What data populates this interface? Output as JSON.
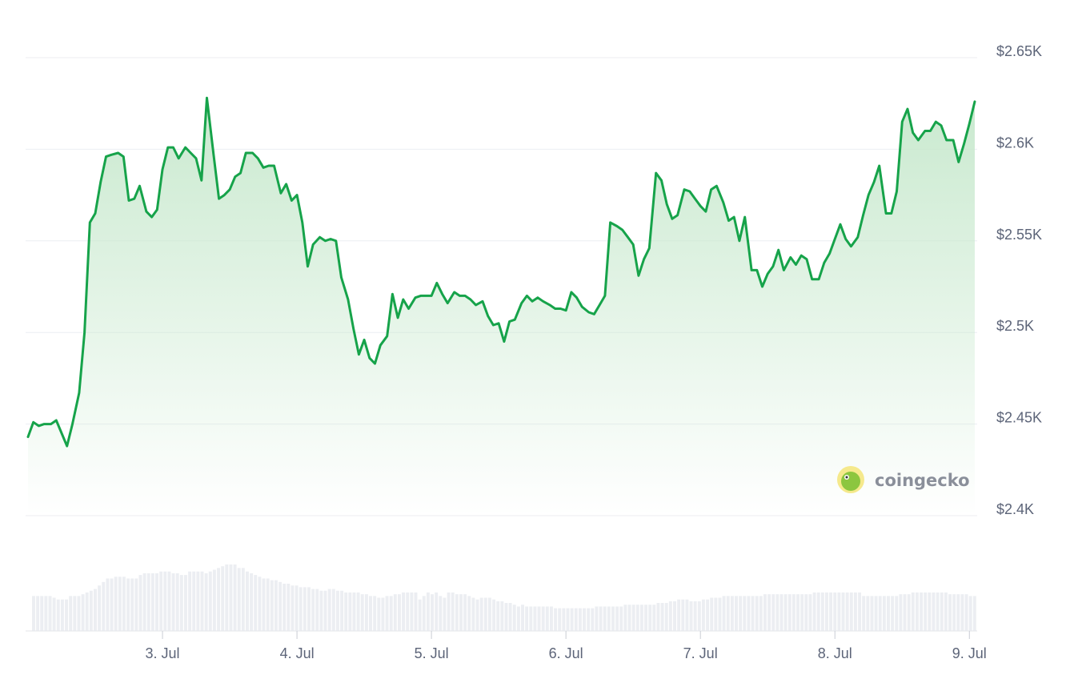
{
  "chart_data": {
    "type": "area",
    "title": "",
    "xlabel": "",
    "ylabel": "",
    "ylim": [
      2400,
      2650
    ],
    "grid": true,
    "y_ticks": [
      {
        "value": 2650,
        "label": "$2.65K"
      },
      {
        "value": 2600,
        "label": "$2.6K"
      },
      {
        "value": 2550,
        "label": "$2.55K"
      },
      {
        "value": 2500,
        "label": "$2.5K"
      },
      {
        "value": 2450,
        "label": "$2.45K"
      },
      {
        "value": 2400,
        "label": "$2.4K"
      }
    ],
    "x_ticks": [
      {
        "value": 1,
        "label": "3. Jul"
      },
      {
        "value": 2,
        "label": "4. Jul"
      },
      {
        "value": 3,
        "label": "5. Jul"
      },
      {
        "value": 4,
        "label": "6. Jul"
      },
      {
        "value": 5,
        "label": "7. Jul"
      },
      {
        "value": 6,
        "label": "8. Jul"
      },
      {
        "value": 7,
        "label": "9. Jul"
      }
    ],
    "series": [
      {
        "values": [
          [
            0.0,
            2443
          ],
          [
            0.04,
            2451
          ],
          [
            0.08,
            2449
          ],
          [
            0.12,
            2450
          ],
          [
            0.17,
            2450
          ],
          [
            0.21,
            2452
          ],
          [
            0.25,
            2445
          ],
          [
            0.29,
            2438
          ],
          [
            0.33,
            2450
          ],
          [
            0.38,
            2467
          ],
          [
            0.42,
            2500
          ],
          [
            0.46,
            2560
          ],
          [
            0.5,
            2565
          ],
          [
            0.54,
            2582
          ],
          [
            0.58,
            2596
          ],
          [
            0.62,
            2597
          ],
          [
            0.67,
            2598
          ],
          [
            0.71,
            2596
          ],
          [
            0.75,
            2572
          ],
          [
            0.79,
            2573
          ],
          [
            0.83,
            2580
          ],
          [
            0.88,
            2566
          ],
          [
            0.92,
            2563
          ],
          [
            0.96,
            2567
          ],
          [
            1.0,
            2589
          ],
          [
            1.04,
            2601
          ],
          [
            1.08,
            2601
          ],
          [
            1.12,
            2595
          ],
          [
            1.17,
            2601
          ],
          [
            1.21,
            2598
          ],
          [
            1.25,
            2595
          ],
          [
            1.29,
            2583
          ],
          [
            1.33,
            2628
          ],
          [
            1.38,
            2597
          ],
          [
            1.42,
            2573
          ],
          [
            1.46,
            2575
          ],
          [
            1.5,
            2578
          ],
          [
            1.54,
            2585
          ],
          [
            1.58,
            2587
          ],
          [
            1.62,
            2598
          ],
          [
            1.67,
            2598
          ],
          [
            1.71,
            2595
          ],
          [
            1.75,
            2590
          ],
          [
            1.79,
            2591
          ],
          [
            1.83,
            2591
          ],
          [
            1.88,
            2576
          ],
          [
            1.92,
            2581
          ],
          [
            1.96,
            2572
          ],
          [
            2.0,
            2575
          ],
          [
            2.04,
            2560
          ],
          [
            2.08,
            2536
          ],
          [
            2.12,
            2548
          ],
          [
            2.17,
            2552
          ],
          [
            2.21,
            2550
          ],
          [
            2.25,
            2551
          ],
          [
            2.29,
            2550
          ],
          [
            2.33,
            2530
          ],
          [
            2.38,
            2518
          ],
          [
            2.42,
            2502
          ],
          [
            2.46,
            2488
          ],
          [
            2.5,
            2496
          ],
          [
            2.54,
            2486
          ],
          [
            2.58,
            2483
          ],
          [
            2.62,
            2493
          ],
          [
            2.67,
            2498
          ],
          [
            2.71,
            2521
          ],
          [
            2.75,
            2508
          ],
          [
            2.79,
            2518
          ],
          [
            2.83,
            2513
          ],
          [
            2.88,
            2519
          ],
          [
            2.92,
            2520
          ],
          [
            2.96,
            2520
          ],
          [
            3.0,
            2520
          ],
          [
            3.04,
            2527
          ],
          [
            3.08,
            2521
          ],
          [
            3.12,
            2516
          ],
          [
            3.17,
            2522
          ],
          [
            3.21,
            2520
          ],
          [
            3.25,
            2520
          ],
          [
            3.29,
            2518
          ],
          [
            3.33,
            2515
          ],
          [
            3.38,
            2517
          ],
          [
            3.42,
            2509
          ],
          [
            3.46,
            2504
          ],
          [
            3.5,
            2505
          ],
          [
            3.54,
            2495
          ],
          [
            3.58,
            2506
          ],
          [
            3.62,
            2507
          ],
          [
            3.67,
            2516
          ],
          [
            3.71,
            2520
          ],
          [
            3.75,
            2517
          ],
          [
            3.79,
            2519
          ],
          [
            3.83,
            2517
          ],
          [
            3.88,
            2515
          ],
          [
            3.92,
            2513
          ],
          [
            3.96,
            2513
          ],
          [
            4.0,
            2512
          ],
          [
            4.04,
            2522
          ],
          [
            4.08,
            2519
          ],
          [
            4.12,
            2514
          ],
          [
            4.17,
            2511
          ],
          [
            4.21,
            2510
          ],
          [
            4.25,
            2515
          ],
          [
            4.29,
            2520
          ],
          [
            4.33,
            2560
          ],
          [
            4.38,
            2558
          ],
          [
            4.42,
            2556
          ],
          [
            4.46,
            2552
          ],
          [
            4.5,
            2548
          ],
          [
            4.54,
            2531
          ],
          [
            4.58,
            2540
          ],
          [
            4.62,
            2546
          ],
          [
            4.67,
            2587
          ],
          [
            4.71,
            2583
          ],
          [
            4.75,
            2570
          ],
          [
            4.79,
            2562
          ],
          [
            4.83,
            2564
          ],
          [
            4.88,
            2578
          ],
          [
            4.92,
            2577
          ],
          [
            4.96,
            2573
          ],
          [
            5.0,
            2569
          ],
          [
            5.04,
            2566
          ],
          [
            5.08,
            2578
          ],
          [
            5.12,
            2580
          ],
          [
            5.17,
            2571
          ],
          [
            5.21,
            2561
          ],
          [
            5.25,
            2563
          ],
          [
            5.29,
            2550
          ],
          [
            5.33,
            2563
          ],
          [
            5.38,
            2534
          ],
          [
            5.42,
            2534
          ],
          [
            5.46,
            2525
          ],
          [
            5.5,
            2532
          ],
          [
            5.54,
            2536
          ],
          [
            5.58,
            2545
          ],
          [
            5.62,
            2534
          ],
          [
            5.67,
            2541
          ],
          [
            5.71,
            2537
          ],
          [
            5.75,
            2542
          ],
          [
            5.79,
            2540
          ],
          [
            5.83,
            2529
          ],
          [
            5.88,
            2529
          ],
          [
            5.92,
            2538
          ],
          [
            5.96,
            2543
          ],
          [
            6.0,
            2551
          ],
          [
            6.04,
            2559
          ],
          [
            6.08,
            2551
          ],
          [
            6.12,
            2547
          ],
          [
            6.17,
            2552
          ],
          [
            6.21,
            2564
          ],
          [
            6.25,
            2575
          ],
          [
            6.29,
            2582
          ],
          [
            6.33,
            2591
          ],
          [
            6.38,
            2565
          ],
          [
            6.42,
            2565
          ],
          [
            6.46,
            2577
          ],
          [
            6.5,
            2615
          ],
          [
            6.54,
            2622
          ],
          [
            6.58,
            2609
          ],
          [
            6.62,
            2605
          ],
          [
            6.67,
            2610
          ],
          [
            6.71,
            2610
          ],
          [
            6.75,
            2615
          ],
          [
            6.79,
            2613
          ],
          [
            6.83,
            2605
          ],
          [
            6.88,
            2605
          ],
          [
            6.92,
            2593
          ],
          [
            6.96,
            2603
          ],
          [
            7.0,
            2614
          ],
          [
            7.04,
            2626
          ]
        ]
      }
    ],
    "volume_values": [
      40,
      40,
      40,
      40,
      40,
      38,
      36,
      36,
      36,
      40,
      40,
      40,
      42,
      44,
      46,
      48,
      52,
      56,
      60,
      60,
      62,
      62,
      62,
      60,
      60,
      60,
      64,
      66,
      66,
      66,
      66,
      68,
      68,
      68,
      66,
      66,
      64,
      64,
      68,
      68,
      68,
      68,
      66,
      68,
      70,
      72,
      74,
      76,
      76,
      76,
      72,
      72,
      68,
      66,
      64,
      62,
      60,
      60,
      58,
      58,
      56,
      54,
      54,
      52,
      52,
      50,
      50,
      50,
      48,
      48,
      46,
      46,
      48,
      48,
      46,
      46,
      44,
      44,
      44,
      44,
      42,
      42,
      40,
      40,
      38,
      38,
      40,
      40,
      42,
      42,
      44,
      44,
      44,
      44,
      36,
      40,
      44,
      42,
      44,
      40,
      38,
      44,
      44,
      42,
      42,
      42,
      40,
      38,
      36,
      38,
      38,
      38,
      36,
      34,
      34,
      32,
      32,
      30,
      28,
      30,
      28,
      28,
      28,
      28,
      28,
      28,
      28,
      26,
      26,
      26,
      26,
      26,
      26,
      26,
      26,
      26,
      26,
      28,
      28,
      28,
      28,
      28,
      28,
      28,
      30,
      30,
      30,
      30,
      30,
      30,
      30,
      30,
      32,
      32,
      32,
      34,
      34,
      36,
      36,
      36,
      34,
      34,
      34,
      36,
      36,
      38,
      38,
      38,
      40,
      40,
      40,
      40,
      40,
      40,
      40,
      40,
      40,
      40,
      42,
      42,
      42,
      42,
      42,
      42,
      42,
      42,
      42,
      42,
      42,
      42,
      44,
      44,
      44,
      44,
      44,
      44,
      44,
      44,
      44,
      44,
      44,
      44,
      40,
      40,
      40,
      40,
      40,
      40,
      40,
      40,
      40,
      42,
      42,
      42,
      44,
      44,
      44,
      44,
      44,
      44,
      44,
      44,
      44,
      42,
      42,
      42,
      42,
      42,
      40,
      40
    ]
  },
  "watermark": {
    "text": "coingecko",
    "icon": "gecko-logo-icon"
  },
  "colors": {
    "line": "#16a34a",
    "area_top": "#c6e8cc",
    "grid": "#eceef2",
    "volume_bar": "#eceef2",
    "tick_text": "#5c6478"
  }
}
